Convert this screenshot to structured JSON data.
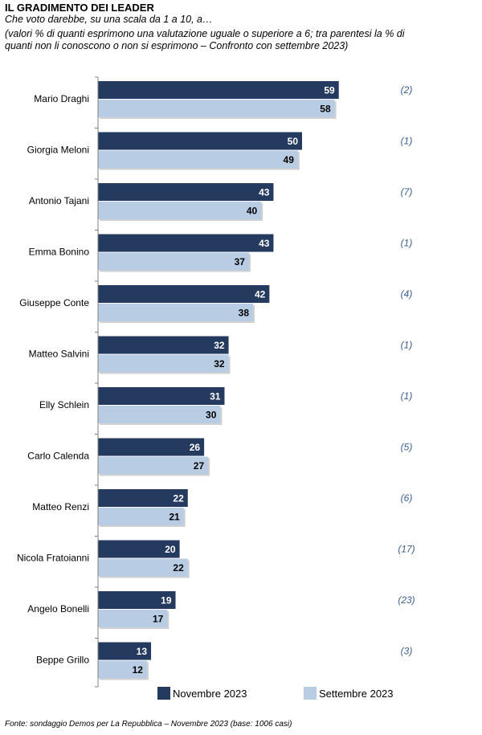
{
  "header": {
    "title": "IL GRADIMENTO DEI LEADER",
    "subtitle": "Che voto darebbe, su una scala da 1 a 10, a…",
    "note": "(valori % di quanti esprimono una valutazione uguale o superiore a 6; tra parentesi la % di quanti non li conoscono o non si esprimono – Confronto con settembre 2023)"
  },
  "footer": {
    "source": "Fonte: sondaggio Demos per La Repubblica – Novembre 2023 (base: 1006 casi)"
  },
  "colors": {
    "novembre": "#243a5e",
    "settembre": "#b8cce4",
    "axis": "#808080"
  },
  "chart_data": {
    "type": "bar",
    "orientation": "horizontal",
    "categories": [
      "Mario Draghi",
      "Giorgia Meloni",
      "Antonio Tajani",
      "Emma Bonino",
      "Giuseppe Conte",
      "Matteo Salvini",
      "Elly Schlein",
      "Carlo Calenda",
      "Matteo Renzi",
      "Nicola Fratoianni",
      "Angelo Bonelli",
      "Beppe Grillo"
    ],
    "series": [
      {
        "name": "Novembre 2023",
        "values": [
          59,
          50,
          43,
          43,
          42,
          32,
          31,
          26,
          22,
          20,
          19,
          13
        ]
      },
      {
        "name": "Settembre 2023",
        "values": [
          58,
          49,
          40,
          37,
          38,
          32,
          30,
          27,
          21,
          22,
          17,
          12
        ]
      }
    ],
    "parentheses": [
      "(2)",
      "(1)",
      "(7)",
      "(1)",
      "(4)",
      "(1)",
      "(1)",
      "(5)",
      "(6)",
      "(17)",
      "(23)",
      "(3)"
    ],
    "xlim": [
      0,
      70
    ],
    "data_labels": true,
    "legend_position": "bottom"
  }
}
